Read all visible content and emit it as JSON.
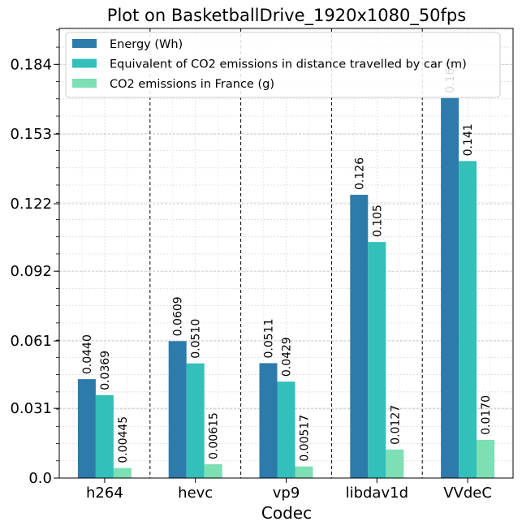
{
  "chart_data": {
    "type": "bar",
    "title": "Plot on BasketballDrive_1920x1080_50fps",
    "xlabel": "Codec",
    "ylabel": "",
    "categories": [
      "h264",
      "hevc",
      "vp9",
      "libdav1d",
      "VVdeC"
    ],
    "ylim": [
      0,
      0.2
    ],
    "yticks": [
      0.0,
      0.031,
      0.061,
      0.092,
      0.122,
      0.153,
      0.184
    ],
    "ytick_labels": [
      "0.0",
      "0.031",
      "0.061",
      "0.092",
      "0.122",
      "0.153",
      "0.184"
    ],
    "grid": true,
    "legend_position": "top-left",
    "series": [
      {
        "name": "Energy (Wh)",
        "color": "#2c7bab",
        "values": [
          0.044,
          0.0609,
          0.0511,
          0.126,
          0.169
        ],
        "labels": [
          "0.0440",
          "0.0609",
          "0.0511",
          "0.126",
          "0.169"
        ]
      },
      {
        "name": "Equivalent of CO2 emissions in distance travelled by car (m)",
        "color": "#33bfba",
        "values": [
          0.0369,
          0.051,
          0.0429,
          0.105,
          0.141
        ],
        "labels": [
          "0.0369",
          "0.0510",
          "0.0429",
          "0.105",
          "0.141"
        ]
      },
      {
        "name": "CO2 emissions in France (g)",
        "color": "#7ddfb4",
        "values": [
          0.00445,
          0.00615,
          0.00517,
          0.0127,
          0.017
        ],
        "labels": [
          "0.00445",
          "0.00615",
          "0.00517",
          "0.0127",
          "0.0170"
        ]
      }
    ]
  }
}
